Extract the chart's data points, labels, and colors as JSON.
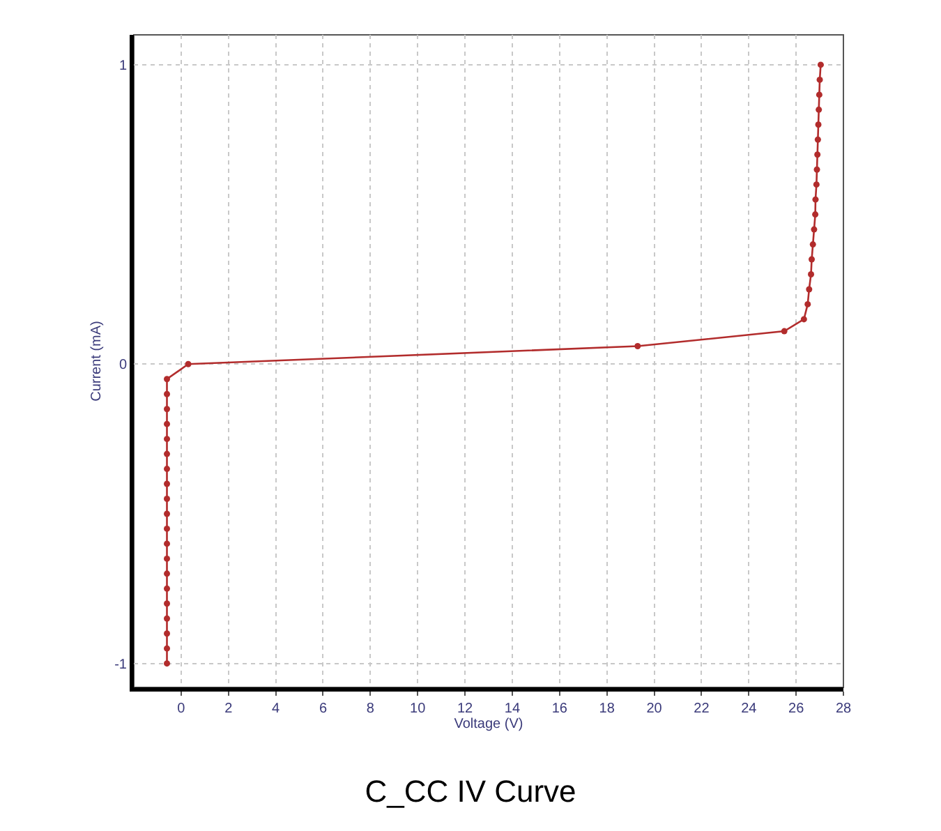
{
  "chart_data": {
    "type": "line",
    "title": "C_CC IV Curve",
    "xlabel": "Voltage (V)",
    "ylabel": "Current (mA)",
    "series": [
      {
        "color": "#b22c2c",
        "x": [
          -0.6,
          -0.6,
          -0.6,
          -0.6,
          -0.6,
          -0.6,
          -0.6,
          -0.6,
          -0.6,
          -0.6,
          -0.6,
          -0.6,
          -0.6,
          -0.6,
          -0.6,
          -0.6,
          -0.6,
          -0.6,
          -0.6,
          -0.6,
          0.3,
          19.3,
          25.5,
          26.33,
          26.49,
          26.55,
          26.63,
          26.66,
          26.71,
          26.76,
          26.81,
          26.82,
          26.86,
          26.88,
          26.9,
          26.92,
          26.94,
          26.96,
          26.98,
          27.0,
          27.04
        ],
        "values": [
          -1.0,
          -0.95,
          -0.9,
          -0.85,
          -0.8,
          -0.75,
          -0.7,
          -0.65,
          -0.6,
          -0.55,
          -0.5,
          -0.45,
          -0.4,
          -0.35,
          -0.3,
          -0.25,
          -0.2,
          -0.15,
          -0.1,
          -0.05,
          0.0,
          0.06,
          0.11,
          0.15,
          0.2,
          0.25,
          0.3,
          0.35,
          0.4,
          0.45,
          0.5,
          0.55,
          0.6,
          0.65,
          0.7,
          0.75,
          0.8,
          0.85,
          0.9,
          0.95,
          1.0
        ]
      }
    ],
    "xlim": [
      -2,
      28
    ],
    "xticks": [
      0,
      2,
      4,
      6,
      8,
      10,
      12,
      14,
      16,
      18,
      20,
      22,
      24,
      26,
      28
    ],
    "ylim": [
      -1.08,
      1.1
    ],
    "yticks": [
      -1,
      0,
      1
    ],
    "grid": true,
    "marker": "circle",
    "line_style": "solid"
  }
}
